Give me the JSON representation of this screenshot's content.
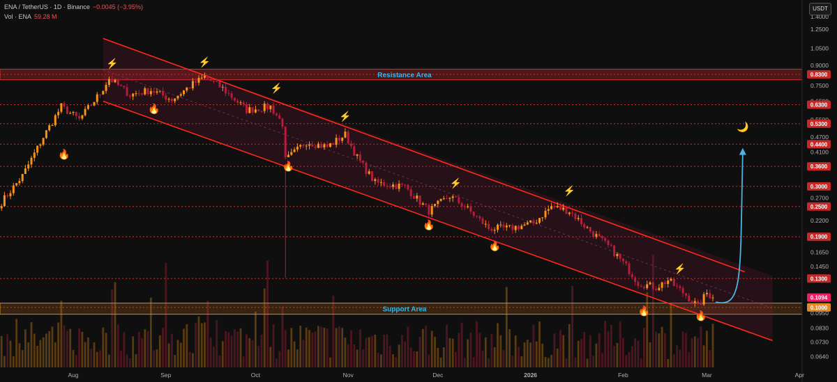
{
  "header": {
    "symbol": "ENA / TetherUS · 1D · Binance",
    "change": "−0.0045 (−3.95%)",
    "volume_label": "Vol · ENA",
    "volume_value": "59.28 M"
  },
  "currency_button": "USDT",
  "colors": {
    "background": "#0f0f10",
    "up": "#f7931a",
    "down": "#b71c3a",
    "channel": "#ff2a1a",
    "level_line": "#e53935",
    "level_badge": "#c62828",
    "zone_text": "#35b6e8",
    "arrow": "#4fb3e0",
    "price_badge": "#e91e63"
  },
  "chart_data": {
    "type": "candlestick",
    "y_scale": "log",
    "ylim": [
      0.058,
      1.55
    ],
    "x_ticks": [
      "Aug",
      "Sep",
      "Oct",
      "Nov",
      "Dec",
      "2026",
      "Feb",
      "Mar",
      "Apr"
    ],
    "y_ticks": [
      "1.4000",
      "1.2500",
      "1.0500",
      "0.9000",
      "0.7500",
      "0.6500",
      "0.5500",
      "0.4700",
      "0.4100",
      "0.2700",
      "0.2200",
      "0.1650",
      "0.1450",
      "0.0950",
      "0.0830",
      "0.0730",
      "0.0640"
    ],
    "levels": [
      0.83,
      0.63,
      0.53,
      0.44,
      0.36,
      0.3,
      0.25,
      0.19,
      0.13,
      0.1
    ],
    "level_labels": [
      "0.8300",
      "0.6300",
      "0.5300",
      "0.4400",
      "0.3600",
      "0.3000",
      "0.2500",
      "0.1900",
      "0.1300",
      "0.1000"
    ],
    "current_price": "0.1094",
    "zones": [
      {
        "name": "Resistance Area",
        "from": 0.79,
        "to": 0.87
      },
      {
        "name": "Support Area",
        "from": 0.094,
        "to": 0.104
      }
    ],
    "series_points": [
      [
        "2025-07-08",
        0.26
      ],
      [
        "2025-07-15",
        0.33
      ],
      [
        "2025-07-22",
        0.47
      ],
      [
        "2025-07-28",
        0.62
      ],
      [
        "2025-08-03",
        0.55
      ],
      [
        "2025-08-10",
        0.7
      ],
      [
        "2025-08-13",
        0.8
      ],
      [
        "2025-08-20",
        0.69
      ],
      [
        "2025-08-27",
        0.72
      ],
      [
        "2025-09-03",
        0.66
      ],
      [
        "2025-09-10",
        0.76
      ],
      [
        "2025-09-14",
        0.81
      ],
      [
        "2025-09-20",
        0.73
      ],
      [
        "2025-09-28",
        0.6
      ],
      [
        "2025-10-06",
        0.62
      ],
      [
        "2025-10-10",
        0.53
      ],
      [
        "2025-10-11",
        0.38
      ],
      [
        "2025-10-18",
        0.45
      ],
      [
        "2025-10-25",
        0.43
      ],
      [
        "2025-10-31",
        0.48
      ],
      [
        "2025-11-04",
        0.39
      ],
      [
        "2025-11-10",
        0.31
      ],
      [
        "2025-11-20",
        0.3
      ],
      [
        "2025-11-28",
        0.24
      ],
      [
        "2025-12-05",
        0.275
      ],
      [
        "2025-12-10",
        0.25
      ],
      [
        "2025-12-18",
        0.205
      ],
      [
        "2025-12-25",
        0.205
      ],
      [
        "2026-01-02",
        0.215
      ],
      [
        "2026-01-08",
        0.25
      ],
      [
        "2026-01-14",
        0.24
      ],
      [
        "2026-01-20",
        0.205
      ],
      [
        "2026-01-28",
        0.17
      ],
      [
        "2026-02-02",
        0.145
      ],
      [
        "2026-02-06",
        0.125
      ],
      [
        "2026-02-12",
        0.12
      ],
      [
        "2026-02-16",
        0.128
      ],
      [
        "2026-02-22",
        0.112
      ],
      [
        "2026-02-26",
        0.101
      ],
      [
        "2026-03-01",
        0.114
      ],
      [
        "2026-03-03",
        0.1094
      ]
    ],
    "channel": {
      "upper": [
        [
          "2025-08-11",
          1.15
        ],
        [
          "2026-03-23",
          0.133
        ]
      ],
      "lower": [
        [
          "2025-08-11",
          0.65
        ],
        [
          "2026-03-23",
          0.074
        ]
      ]
    },
    "projection": [
      [
        "2026-03-04",
        0.105
      ],
      [
        "2026-03-13",
        0.42
      ]
    ],
    "markers": {
      "bolt": [
        [
          "2025-08-14",
          0.89
        ],
        [
          "2025-09-14",
          0.9
        ],
        [
          "2025-10-08",
          0.71
        ],
        [
          "2025-10-31",
          0.55
        ],
        [
          "2025-12-07",
          0.3
        ],
        [
          "2026-01-14",
          0.28
        ],
        [
          "2026-02-20",
          0.138
        ]
      ],
      "flame": [
        [
          "2025-07-29",
          0.39
        ],
        [
          "2025-08-28",
          0.59
        ],
        [
          "2025-10-12",
          0.35
        ],
        [
          "2025-11-28",
          0.205
        ],
        [
          "2025-12-20",
          0.17
        ],
        [
          "2026-02-08",
          0.094
        ],
        [
          "2026-02-27",
          0.09
        ]
      ],
      "moon": [
        [
          "2026-03-13",
          0.5
        ]
      ]
    }
  }
}
